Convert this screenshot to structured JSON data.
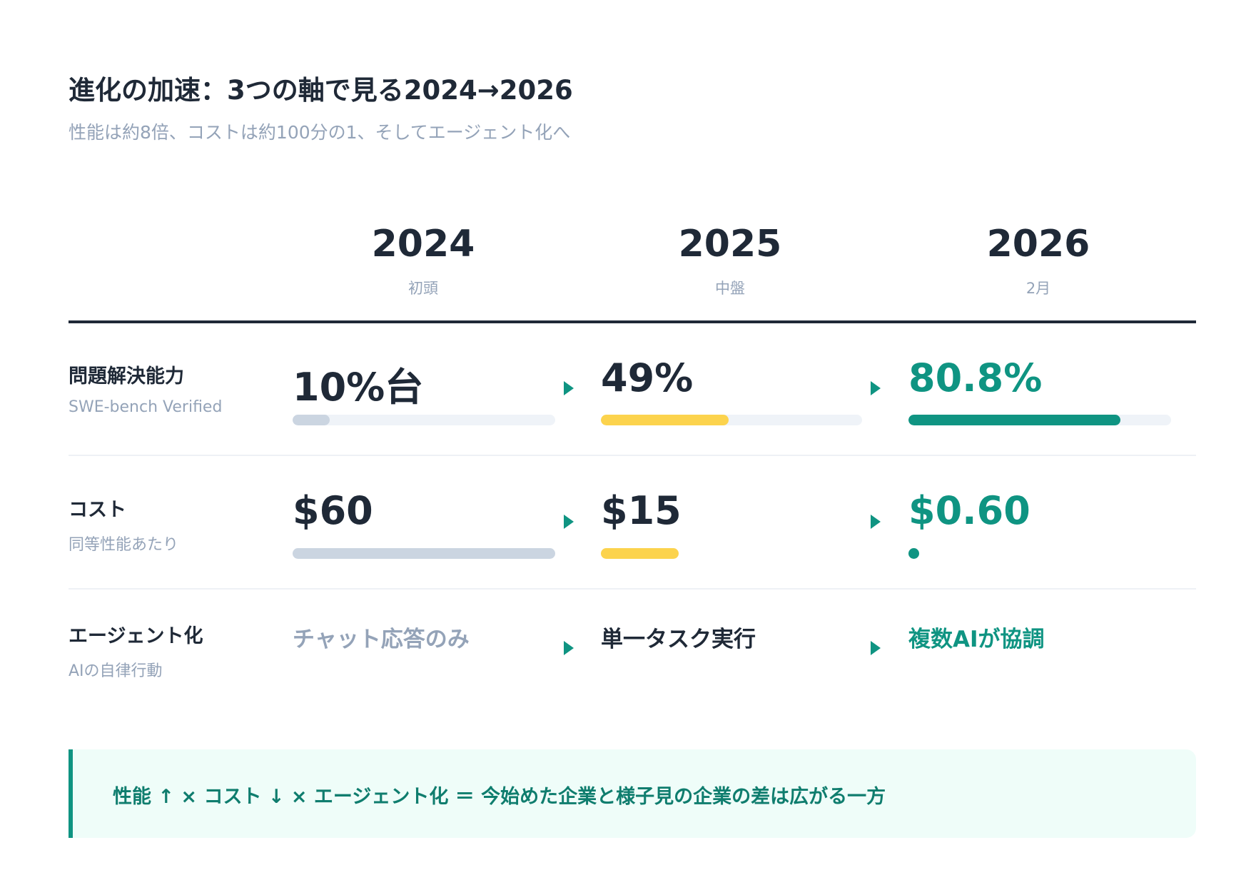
{
  "header": {
    "title": "進化の加速：3つの軸で見る2024→2026",
    "subtitle": "性能は約8倍、コストは約100分の1、そしてエージェント化へ"
  },
  "columns": [
    {
      "year": "2024",
      "period": "初頭"
    },
    {
      "year": "2025",
      "period": "中盤"
    },
    {
      "year": "2026",
      "period": "2月"
    }
  ],
  "rows": {
    "performance": {
      "label": "問題解決能力",
      "sublabel": "SWE-bench Verified",
      "values": [
        "10%台",
        "49%",
        "80.8%"
      ],
      "bar_levels": [
        0.14,
        0.49,
        0.808
      ]
    },
    "cost": {
      "label": "コスト",
      "sublabel": "同等性能あたり",
      "values": [
        "$60",
        "$15",
        "$0.60"
      ],
      "bar_levels": [
        1.0,
        0.25,
        0.01
      ]
    },
    "agent": {
      "label": "エージェント化",
      "sublabel": "AIの自律行動",
      "values": [
        "チャット応答のみ",
        "単一タスク実行",
        "複数AIが協調"
      ]
    }
  },
  "colors": {
    "dark": "#1f2937",
    "muted": "#94a3b8",
    "teal": "#0f9482",
    "yellow": "#fcd34d",
    "gray_bar": "#cbd5e1",
    "track": "#eff3f8"
  },
  "icons": {
    "arrow": "play-triangle-icon"
  },
  "callout": {
    "text": "性能 ↑ × コスト ↓ × エージェント化 ＝ 今始めた企業と様子見の企業の差は広がる一方"
  }
}
